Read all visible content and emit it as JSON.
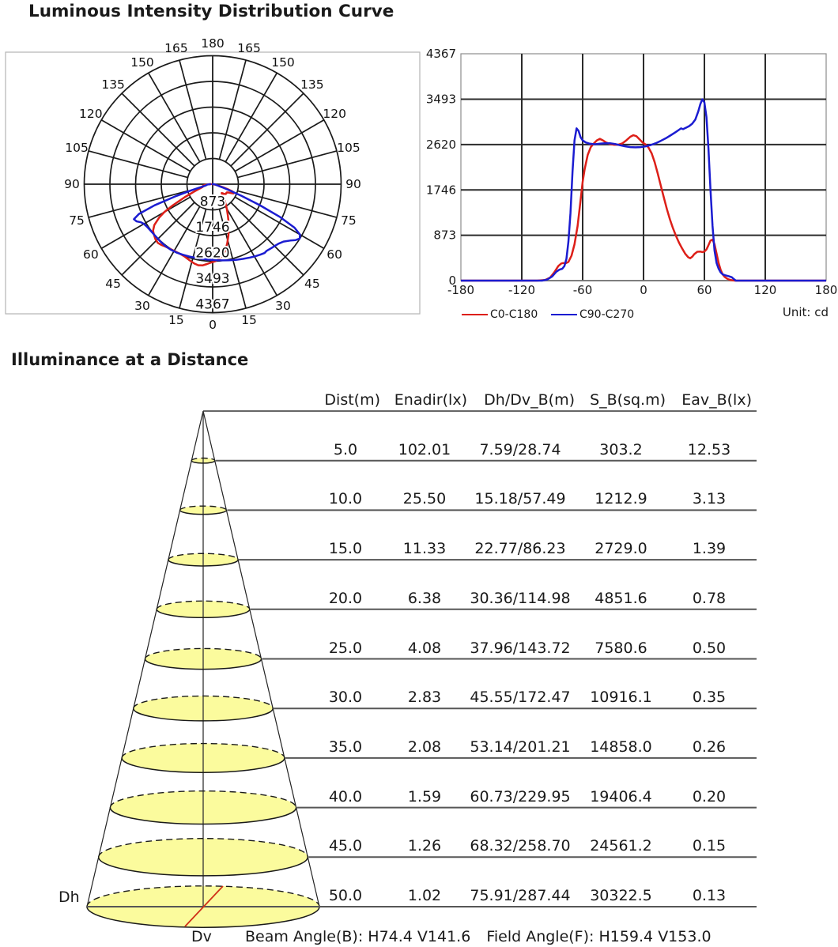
{
  "header": {
    "title": "Luminous Intensity Distribution Curve"
  },
  "chart_data": [
    {
      "type": "line",
      "name": "luminous-intensity-polar",
      "projection": "polar",
      "unit": "cd",
      "angle_ticks_deg": [
        0,
        15,
        30,
        45,
        60,
        75,
        90,
        105,
        120,
        135,
        150,
        165,
        180
      ],
      "radial_ticks_cd": [
        873,
        1746,
        2620,
        3493,
        4367
      ],
      "rmax_cd": 4367,
      "series": [
        {
          "name": "C0-C180",
          "color": "#dd1f18",
          "points_deg_cd": [
            [
              -180,
              0
            ],
            [
              -120,
              0
            ],
            [
              -105,
              0
            ],
            [
              -97,
              10
            ],
            [
              -92,
              60
            ],
            [
              -88,
              160
            ],
            [
              -84,
              280
            ],
            [
              -81,
              330
            ],
            [
              -79,
              340
            ],
            [
              -77,
              330
            ],
            [
              -74,
              360
            ],
            [
              -71,
              480
            ],
            [
              -68,
              700
            ],
            [
              -65,
              1050
            ],
            [
              -62,
              1550
            ],
            [
              -60,
              1900
            ],
            [
              -58,
              2150
            ],
            [
              -55,
              2420
            ],
            [
              -52,
              2570
            ],
            [
              -49,
              2640
            ],
            [
              -46,
              2700
            ],
            [
              -43,
              2730
            ],
            [
              -40,
              2700
            ],
            [
              -37,
              2660
            ],
            [
              -33,
              2630
            ],
            [
              -29,
              2615
            ],
            [
              -25,
              2615
            ],
            [
              -21,
              2640
            ],
            [
              -17,
              2700
            ],
            [
              -13,
              2770
            ],
            [
              -10,
              2800
            ],
            [
              -7,
              2780
            ],
            [
              -4,
              2720
            ],
            [
              -1,
              2660
            ],
            [
              2,
              2620
            ],
            [
              5,
              2560
            ],
            [
              8,
              2450
            ],
            [
              11,
              2280
            ],
            [
              14,
              2060
            ],
            [
              17,
              1830
            ],
            [
              20,
              1600
            ],
            [
              23,
              1380
            ],
            [
              26,
              1180
            ],
            [
              29,
              1010
            ],
            [
              32,
              860
            ],
            [
              35,
              730
            ],
            [
              38,
              620
            ],
            [
              41,
              520
            ],
            [
              44,
              450
            ],
            [
              46,
              430
            ],
            [
              48,
              460
            ],
            [
              50,
              510
            ],
            [
              53,
              555
            ],
            [
              56,
              560
            ],
            [
              58,
              550
            ],
            [
              60,
              560
            ],
            [
              62,
              600
            ],
            [
              64,
              680
            ],
            [
              66,
              770
            ],
            [
              68,
              790
            ],
            [
              70,
              700
            ],
            [
              72,
              520
            ],
            [
              74,
              340
            ],
            [
              76,
              210
            ],
            [
              78,
              120
            ],
            [
              80,
              70
            ],
            [
              83,
              30
            ],
            [
              86,
              10
            ],
            [
              90,
              0
            ],
            [
              120,
              0
            ],
            [
              180,
              0
            ]
          ]
        },
        {
          "name": "C90-C270",
          "color": "#1b1cd1",
          "points_deg_cd": [
            [
              -180,
              0
            ],
            [
              -120,
              0
            ],
            [
              -100,
              0
            ],
            [
              -95,
              20
            ],
            [
              -90,
              80
            ],
            [
              -86,
              170
            ],
            [
              -83,
              210
            ],
            [
              -80,
              230
            ],
            [
              -78,
              280
            ],
            [
              -76,
              420
            ],
            [
              -74,
              750
            ],
            [
              -72,
              1300
            ],
            [
              -70,
              2100
            ],
            [
              -68,
              2700
            ],
            [
              -66,
              2930
            ],
            [
              -64,
              2880
            ],
            [
              -62,
              2760
            ],
            [
              -60,
              2700
            ],
            [
              -57,
              2660
            ],
            [
              -53,
              2635
            ],
            [
              -48,
              2625
            ],
            [
              -43,
              2635
            ],
            [
              -38,
              2645
            ],
            [
              -33,
              2645
            ],
            [
              -28,
              2630
            ],
            [
              -23,
              2605
            ],
            [
              -18,
              2585
            ],
            [
              -13,
              2570
            ],
            [
              -8,
              2565
            ],
            [
              -3,
              2570
            ],
            [
              2,
              2585
            ],
            [
              7,
              2610
            ],
            [
              12,
              2645
            ],
            [
              17,
              2690
            ],
            [
              22,
              2740
            ],
            [
              27,
              2800
            ],
            [
              31,
              2850
            ],
            [
              34,
              2890
            ],
            [
              37,
              2930
            ],
            [
              39,
              2915
            ],
            [
              42,
              2945
            ],
            [
              45,
              2975
            ],
            [
              48,
              3020
            ],
            [
              51,
              3100
            ],
            [
              54,
              3260
            ],
            [
              56,
              3400
            ],
            [
              58,
              3490
            ],
            [
              60,
              3430
            ],
            [
              62,
              3150
            ],
            [
              64,
              2550
            ],
            [
              66,
              1750
            ],
            [
              68,
              1050
            ],
            [
              70,
              580
            ],
            [
              72,
              340
            ],
            [
              74,
              230
            ],
            [
              76,
              160
            ],
            [
              78,
              120
            ],
            [
              80,
              105
            ],
            [
              84,
              85
            ],
            [
              87,
              65
            ],
            [
              89,
              30
            ],
            [
              91,
              0
            ],
            [
              120,
              0
            ],
            [
              180,
              0
            ]
          ]
        }
      ]
    },
    {
      "type": "line",
      "name": "luminous-intensity-cartesian",
      "x_ticks": [
        -180,
        -120,
        -60,
        0,
        60,
        120,
        180
      ],
      "y_ticks": [
        0,
        873,
        1746,
        2620,
        3493,
        4367
      ],
      "xlim": [
        -180,
        180
      ],
      "ylim": [
        0,
        4367
      ],
      "grid": true,
      "legend": [
        "C0-C180",
        "C90-C270"
      ],
      "legend_position": "bottom-left",
      "unit_label": "Unit: cd",
      "series_ref": "chart_data.0.series"
    }
  ],
  "illuminance": {
    "title": "Illuminance at a Distance",
    "cone": {
      "dh_label": "Dh",
      "dv_label": "Dv",
      "fill": "#fbfb9d"
    },
    "table": {
      "headers": [
        "Dist(m)",
        "Enadir(lx)",
        "Dh/Dv_B(m)",
        "S_B(sq.m)",
        "Eav_B(lx)"
      ],
      "rows": [
        [
          "5.0",
          "102.01",
          "7.59/28.74",
          "303.2",
          "12.53"
        ],
        [
          "10.0",
          "25.50",
          "15.18/57.49",
          "1212.9",
          "3.13"
        ],
        [
          "15.0",
          "11.33",
          "22.77/86.23",
          "2729.0",
          "1.39"
        ],
        [
          "20.0",
          "6.38",
          "30.36/114.98",
          "4851.6",
          "0.78"
        ],
        [
          "25.0",
          "4.08",
          "37.96/143.72",
          "7580.6",
          "0.50"
        ],
        [
          "30.0",
          "2.83",
          "45.55/172.47",
          "10916.1",
          "0.35"
        ],
        [
          "35.0",
          "2.08",
          "53.14/201.21",
          "14858.0",
          "0.26"
        ],
        [
          "40.0",
          "1.59",
          "60.73/229.95",
          "19406.4",
          "0.20"
        ],
        [
          "45.0",
          "1.26",
          "68.32/258.70",
          "24561.2",
          "0.15"
        ],
        [
          "50.0",
          "1.02",
          "75.91/287.44",
          "30322.5",
          "0.13"
        ]
      ]
    },
    "footer": {
      "beam": "Beam Angle(B): H74.4 V141.6",
      "field": "Field Angle(F): H159.4 V153.0"
    }
  }
}
